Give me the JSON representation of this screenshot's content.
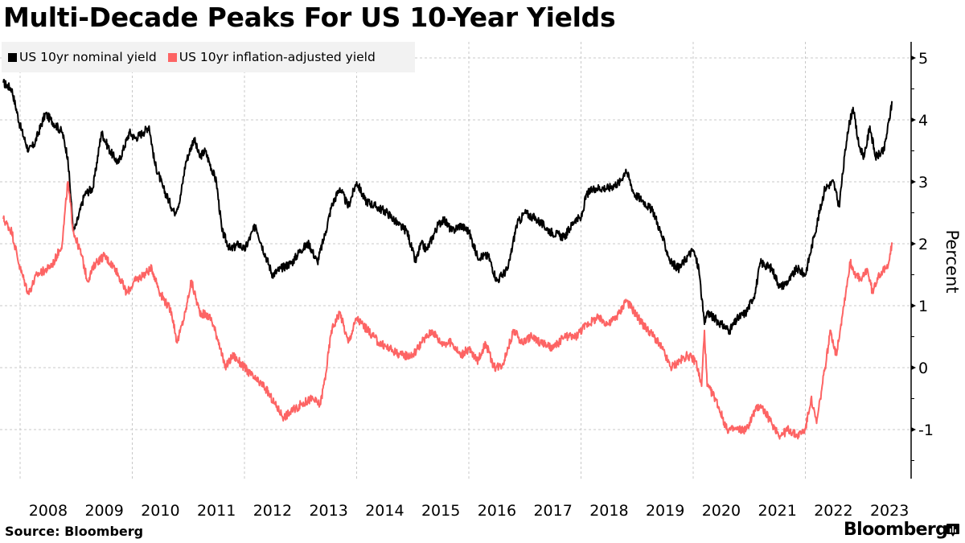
{
  "title": "Multi-Decade Peaks For US 10-Year Yields",
  "source": "Source: Bloomberg",
  "brand": "Bloomberg",
  "brand_icon": "bloomberg-chart-icon",
  "colors": {
    "nominal": "#000000",
    "real": "#fd6464",
    "legend_bg": "#f2f2f2",
    "grid": "#c8c8c8"
  },
  "chart_data": {
    "type": "line",
    "title": "Multi-Decade Peaks For US 10-Year Yields",
    "xlabel": "",
    "ylabel": "Percent",
    "xlim": [
      2007.7,
      2023.6
    ],
    "ylim": [
      -1.75,
      5.25
    ],
    "y_ticks": [
      5,
      4,
      3,
      2,
      1,
      0,
      -1
    ],
    "y_tick_labels": [
      "5",
      "4",
      "3",
      "2",
      "1",
      "0",
      "-1"
    ],
    "x_tick_labels": [
      "2008",
      "2009",
      "2010",
      "2011",
      "2012",
      "2013",
      "2014",
      "2015",
      "2016",
      "2017",
      "2018",
      "2019",
      "2020",
      "2021",
      "2022",
      "2023"
    ],
    "grid": true,
    "legend_position": "top-left",
    "y_axis_position": "right",
    "series": [
      {
        "name": "US 10yr nominal yield",
        "color": "#000000",
        "x": [
          2007.7,
          2007.85,
          2008.0,
          2008.15,
          2008.25,
          2008.45,
          2008.55,
          2008.75,
          2008.85,
          2008.95,
          2009.0,
          2009.15,
          2009.3,
          2009.45,
          2009.6,
          2009.75,
          2009.95,
          2010.05,
          2010.2,
          2010.3,
          2010.4,
          2010.55,
          2010.75,
          2010.85,
          2010.95,
          2011.1,
          2011.2,
          2011.3,
          2011.5,
          2011.6,
          2011.75,
          2011.9,
          2012.0,
          2012.2,
          2012.3,
          2012.5,
          2012.65,
          2012.85,
          2013.0,
          2013.15,
          2013.3,
          2013.45,
          2013.55,
          2013.7,
          2013.85,
          2014.0,
          2014.15,
          2014.35,
          2014.55,
          2014.75,
          2014.9,
          2015.05,
          2015.15,
          2015.25,
          2015.45,
          2015.55,
          2015.7,
          2015.85,
          2016.0,
          2016.15,
          2016.35,
          2016.5,
          2016.7,
          2016.85,
          2017.0,
          2017.2,
          2017.45,
          2017.7,
          2017.9,
          2018.0,
          2018.1,
          2018.25,
          2018.5,
          2018.7,
          2018.8,
          2018.95,
          2019.1,
          2019.3,
          2019.45,
          2019.6,
          2019.75,
          2019.9,
          2020.0,
          2020.1,
          2020.2,
          2020.25,
          2020.5,
          2020.65,
          2020.8,
          2020.95,
          2021.1,
          2021.2,
          2021.4,
          2021.55,
          2021.7,
          2021.85,
          2022.0,
          2022.15,
          2022.35,
          2022.5,
          2022.6,
          2022.75,
          2022.85,
          2022.95,
          2023.05,
          2023.15,
          2023.25,
          2023.4,
          2023.55
        ],
        "values": [
          4.6,
          4.5,
          3.9,
          3.5,
          3.6,
          4.1,
          4.0,
          3.8,
          3.4,
          2.2,
          2.3,
          2.8,
          2.9,
          3.8,
          3.5,
          3.3,
          3.8,
          3.7,
          3.8,
          3.9,
          3.3,
          2.9,
          2.5,
          2.7,
          3.3,
          3.7,
          3.4,
          3.5,
          3.0,
          2.2,
          1.9,
          2.0,
          1.9,
          2.3,
          2.0,
          1.5,
          1.6,
          1.7,
          1.9,
          2.0,
          1.7,
          2.2,
          2.6,
          2.9,
          2.6,
          3.0,
          2.7,
          2.6,
          2.5,
          2.3,
          2.2,
          1.7,
          2.0,
          1.9,
          2.3,
          2.4,
          2.2,
          2.3,
          2.2,
          1.8,
          1.8,
          1.4,
          1.6,
          2.3,
          2.5,
          2.4,
          2.2,
          2.1,
          2.4,
          2.4,
          2.8,
          2.9,
          2.9,
          3.0,
          3.2,
          2.8,
          2.7,
          2.5,
          2.1,
          1.7,
          1.6,
          1.8,
          1.9,
          1.6,
          0.7,
          0.9,
          0.7,
          0.6,
          0.8,
          0.9,
          1.2,
          1.7,
          1.6,
          1.3,
          1.4,
          1.6,
          1.5,
          2.1,
          2.9,
          3.0,
          2.6,
          3.8,
          4.2,
          3.6,
          3.4,
          3.9,
          3.4,
          3.5,
          4.3
        ]
      },
      {
        "name": "US 10yr inflation-adjusted yield",
        "color": "#fd6464",
        "x": [
          2007.7,
          2007.85,
          2008.0,
          2008.15,
          2008.3,
          2008.5,
          2008.6,
          2008.75,
          2008.85,
          2008.95,
          2009.1,
          2009.2,
          2009.35,
          2009.5,
          2009.7,
          2009.9,
          2010.05,
          2010.2,
          2010.35,
          2010.5,
          2010.7,
          2010.8,
          2010.95,
          2011.05,
          2011.2,
          2011.4,
          2011.55,
          2011.65,
          2011.8,
          2012.0,
          2012.2,
          2012.35,
          2012.55,
          2012.7,
          2012.85,
          2013.0,
          2013.2,
          2013.35,
          2013.45,
          2013.55,
          2013.7,
          2013.85,
          2014.0,
          2014.2,
          2014.4,
          2014.6,
          2014.8,
          2015.0,
          2015.15,
          2015.35,
          2015.5,
          2015.7,
          2015.85,
          2016.0,
          2016.15,
          2016.3,
          2016.45,
          2016.6,
          2016.8,
          2016.95,
          2017.1,
          2017.3,
          2017.5,
          2017.7,
          2017.9,
          2018.1,
          2018.3,
          2018.5,
          2018.7,
          2018.8,
          2018.95,
          2019.1,
          2019.3,
          2019.45,
          2019.6,
          2019.75,
          2019.9,
          2020.05,
          2020.15,
          2020.2,
          2020.25,
          2020.4,
          2020.6,
          2020.8,
          2020.95,
          2021.1,
          2021.2,
          2021.4,
          2021.55,
          2021.7,
          2021.85,
          2022.0,
          2022.1,
          2022.2,
          2022.35,
          2022.45,
          2022.55,
          2022.65,
          2022.8,
          2022.9,
          2023.0,
          2023.1,
          2023.2,
          2023.3,
          2023.45,
          2023.55
        ],
        "values": [
          2.4,
          2.2,
          1.6,
          1.2,
          1.5,
          1.6,
          1.7,
          2.0,
          3.0,
          2.2,
          1.8,
          1.4,
          1.7,
          1.8,
          1.6,
          1.2,
          1.4,
          1.5,
          1.6,
          1.2,
          0.9,
          0.4,
          0.9,
          1.4,
          0.9,
          0.8,
          0.4,
          0.0,
          0.2,
          0.0,
          -0.2,
          -0.3,
          -0.6,
          -0.8,
          -0.7,
          -0.6,
          -0.5,
          -0.6,
          -0.1,
          0.6,
          0.9,
          0.4,
          0.8,
          0.6,
          0.4,
          0.3,
          0.2,
          0.2,
          0.4,
          0.6,
          0.4,
          0.4,
          0.2,
          0.3,
          0.1,
          0.4,
          0.0,
          0.05,
          0.6,
          0.4,
          0.5,
          0.4,
          0.3,
          0.5,
          0.5,
          0.7,
          0.8,
          0.7,
          0.9,
          1.1,
          0.9,
          0.7,
          0.5,
          0.3,
          0.0,
          0.1,
          0.2,
          0.1,
          -0.3,
          0.6,
          -0.3,
          -0.5,
          -1.0,
          -1.0,
          -1.0,
          -0.7,
          -0.6,
          -0.9,
          -1.1,
          -1.0,
          -1.1,
          -1.0,
          -0.5,
          -0.9,
          0.0,
          0.6,
          0.2,
          0.8,
          1.7,
          1.5,
          1.4,
          1.6,
          1.2,
          1.5,
          1.6,
          2.0
        ]
      }
    ]
  }
}
